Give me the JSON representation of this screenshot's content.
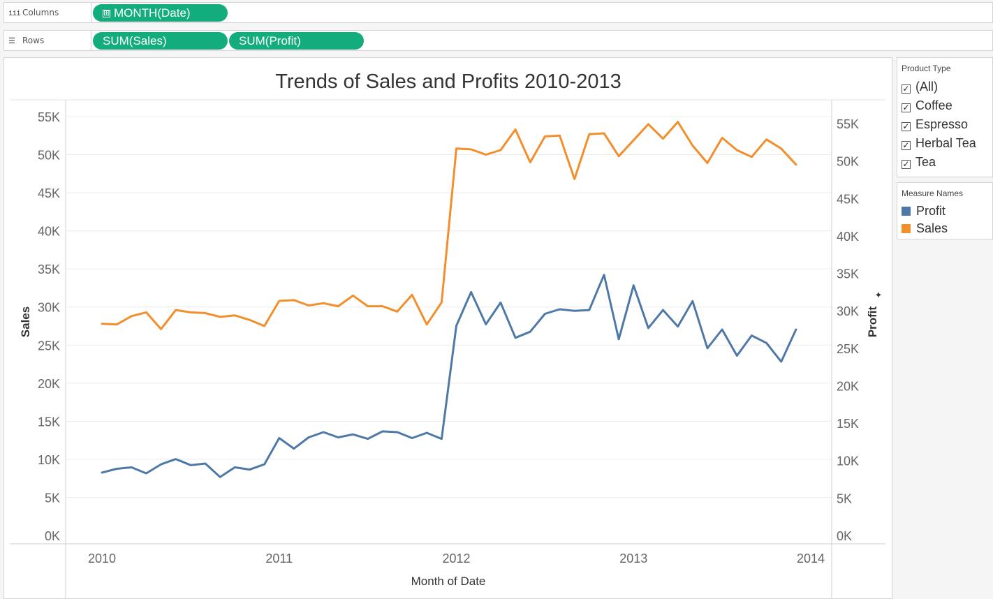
{
  "shelves": {
    "columns": {
      "label": "Columns",
      "icon": "iii",
      "pills": [
        {
          "label": "MONTH(Date)",
          "prefix": "⊞"
        }
      ]
    },
    "rows": {
      "label": "Rows",
      "icon": "☰",
      "pills": [
        {
          "label": "SUM(Sales)"
        },
        {
          "label": "SUM(Profit)"
        }
      ]
    }
  },
  "filter": {
    "title": "Product Type",
    "items": [
      {
        "label": "(All)",
        "checked": true
      },
      {
        "label": "Coffee",
        "checked": true
      },
      {
        "label": "Espresso",
        "checked": true
      },
      {
        "label": "Herbal Tea",
        "checked": true
      },
      {
        "label": "Tea",
        "checked": true
      }
    ]
  },
  "legend": {
    "title": "Measure Names",
    "items": [
      {
        "label": "Profit",
        "color": "#4e79a7"
      },
      {
        "label": "Sales",
        "color": "#f28e2b"
      }
    ]
  },
  "colors": {
    "pill": "#13ac7c",
    "profit": "#4e79a7",
    "sales": "#f28e2b"
  },
  "chart_data": {
    "type": "line",
    "title": "Trends of Sales and Profits 2010-2013",
    "xlabel": "Month of Date",
    "ylabel_left": "Sales",
    "ylabel_right": "Profit",
    "x_ticks": [
      "2010",
      "2011",
      "2012",
      "2013",
      "2014"
    ],
    "x_range": [
      2010,
      2014
    ],
    "y_left_ticks": [
      "0K",
      "5K",
      "10K",
      "15K",
      "20K",
      "25K",
      "30K",
      "35K",
      "40K",
      "45K",
      "50K",
      "55K"
    ],
    "y_right_ticks": [
      "0K",
      "5K",
      "10K",
      "15K",
      "20K",
      "25K",
      "30K",
      "35K",
      "40K",
      "45K",
      "50K",
      "55K"
    ],
    "y_left_range": [
      0,
      55000
    ],
    "y_right_range": [
      0,
      55000
    ],
    "x_months": [
      "2010-01",
      "2010-02",
      "2010-03",
      "2010-04",
      "2010-05",
      "2010-06",
      "2010-07",
      "2010-08",
      "2010-09",
      "2010-10",
      "2010-11",
      "2010-12",
      "2011-01",
      "2011-02",
      "2011-03",
      "2011-04",
      "2011-05",
      "2011-06",
      "2011-07",
      "2011-08",
      "2011-09",
      "2011-10",
      "2011-11",
      "2011-12",
      "2012-01",
      "2012-02",
      "2012-03",
      "2012-04",
      "2012-05",
      "2012-06",
      "2012-07",
      "2012-08",
      "2012-09",
      "2012-10",
      "2012-11",
      "2012-12",
      "2013-01",
      "2013-02",
      "2013-03",
      "2013-04",
      "2013-05",
      "2013-06",
      "2013-07",
      "2013-08",
      "2013-09",
      "2013-10",
      "2013-11",
      "2013-12"
    ],
    "grid": true,
    "series": [
      {
        "name": "Sales",
        "axis": "left",
        "color": "#f28e2b",
        "values": [
          27800,
          27700,
          28800,
          29300,
          27100,
          29600,
          29300,
          29200,
          28700,
          28900,
          28300,
          27500,
          30800,
          30900,
          30200,
          30500,
          30100,
          31500,
          30100,
          30100,
          29400,
          31600,
          27700,
          30600,
          50800,
          50700,
          50000,
          50600,
          53300,
          49000,
          52400,
          52500,
          46800,
          52700,
          52800,
          49800,
          51900,
          54000,
          52100,
          54300,
          51200,
          48900,
          52200,
          50600,
          49700,
          52000,
          50800,
          48700
        ]
      },
      {
        "name": "Profit",
        "axis": "right",
        "color": "#4e79a7",
        "values": [
          8400,
          8900,
          9100,
          8300,
          9500,
          10200,
          9400,
          9600,
          7800,
          9100,
          8800,
          9500,
          13000,
          11600,
          13100,
          13800,
          13100,
          13500,
          12900,
          13900,
          13800,
          13000,
          13700,
          12900,
          28000,
          32500,
          28200,
          31100,
          26400,
          27200,
          29600,
          30200,
          30000,
          30100,
          34800,
          26200,
          33400,
          27700,
          30100,
          27900,
          31300,
          25000,
          27500,
          24000,
          26700,
          25700,
          23200,
          27500
        ]
      }
    ]
  }
}
